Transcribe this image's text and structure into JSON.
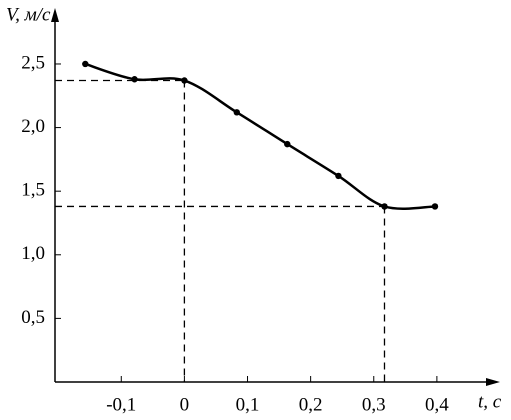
{
  "chart_data": {
    "type": "line",
    "ylabel": "V, м/с",
    "xlabel": "t, с",
    "x": [
      -0.157,
      -0.079,
      0,
      0.083,
      0.163,
      0.244,
      0.317,
      0.397
    ],
    "series": [
      {
        "color": "#000000",
        "values": [
          2.5,
          2.38,
          2.37,
          2.12,
          1.87,
          1.62,
          1.38,
          1.38
        ]
      }
    ],
    "guides": [
      {
        "x": 0,
        "y": 2.37
      },
      {
        "x": 0.317,
        "y": 1.38
      }
    ],
    "xlim": [
      -0.205,
      0.5
    ],
    "ylim": [
      0,
      2.94
    ],
    "xticks": [
      {
        "value": -0.1,
        "label": "-0,1"
      },
      0,
      {
        "value": 0.1,
        "label": "0,1"
      },
      {
        "value": 0.2,
        "label": "0,2"
      },
      {
        "value": 0.3,
        "label": "0,3"
      },
      {
        "value": 0.4,
        "label": "0,4"
      }
    ],
    "yticks": [
      {
        "value": 0.5,
        "label": "0,5"
      },
      {
        "value": 1.0,
        "label": "1,0"
      },
      {
        "value": 1.5,
        "label": "1,5"
      },
      {
        "value": 2.0,
        "label": "2,0"
      },
      {
        "value": 2.5,
        "label": "2,5"
      }
    ]
  }
}
